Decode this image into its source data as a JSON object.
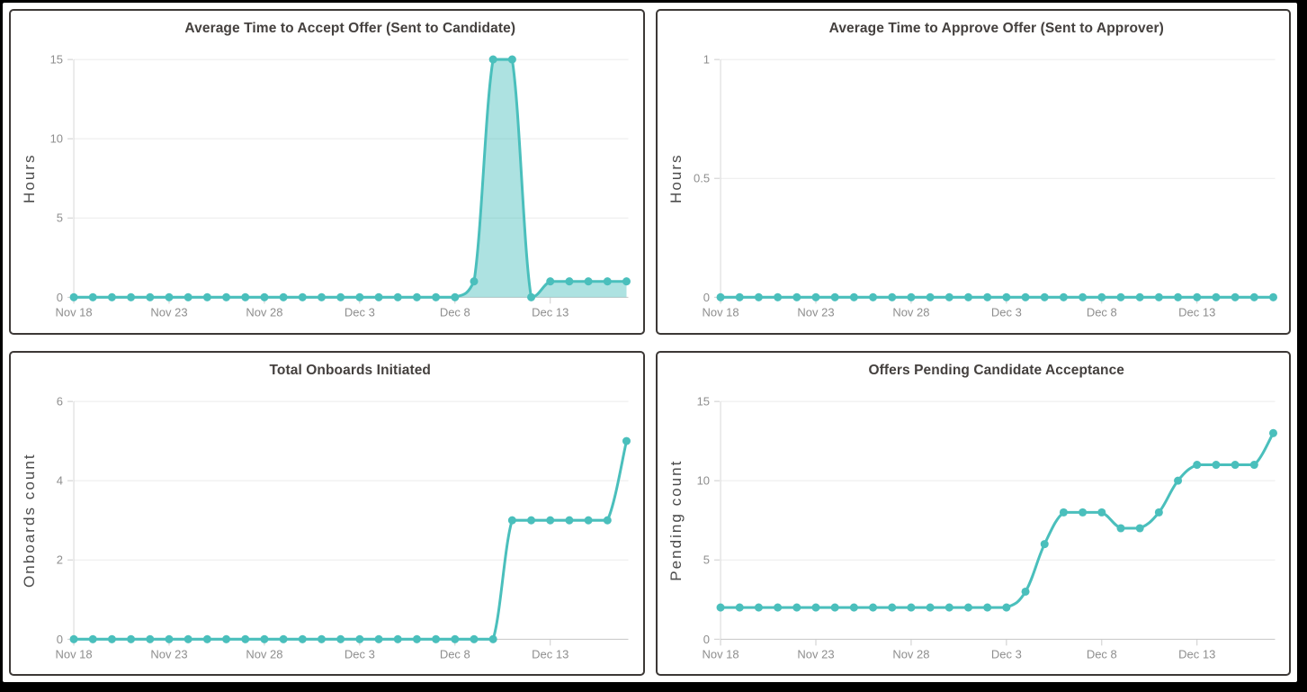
{
  "palette": {
    "line": "#4abfbc",
    "marker": "#4abfbc",
    "area_fill": "rgba(74,191,188,0.45)",
    "title_text": "#44403e",
    "axis_label_text": "#4b4b4b",
    "tick_label_text": "#8e8e8e",
    "gridline": "#ebebeb",
    "y_axis_line": "#d8d8d8",
    "x_axis_line": "#c6c6c6",
    "tick_mark": "#cccccc",
    "panel_border": "#3c3836",
    "frame": "#000000",
    "surface": "#ffffff"
  },
  "x_axis": {
    "categories": [
      "Nov 18",
      "Nov 19",
      "Nov 20",
      "Nov 21",
      "Nov 22",
      "Nov 23",
      "Nov 24",
      "Nov 25",
      "Nov 26",
      "Nov 27",
      "Nov 28",
      "Nov 29",
      "Nov 30",
      "Dec 1",
      "Dec 2",
      "Dec 3",
      "Dec 4",
      "Dec 5",
      "Dec 6",
      "Dec 7",
      "Dec 8",
      "Dec 9",
      "Dec 10",
      "Dec 11",
      "Dec 12",
      "Dec 13",
      "Dec 14",
      "Dec 15",
      "Dec 16",
      "Dec 17"
    ],
    "tick_indices": [
      0,
      5,
      10,
      15,
      20,
      25
    ],
    "tick_labels": [
      "Nov 18",
      "Nov 23",
      "Nov 28",
      "Dec 3",
      "Dec 8",
      "Dec 13"
    ]
  },
  "chart_data": [
    {
      "type": "area",
      "title": "Average Time to Accept Offer (Sent to Candidate)",
      "ylabel": "Hours",
      "xlabel": "",
      "ylim": [
        0,
        15
      ],
      "yticks": [
        0,
        5,
        10,
        15
      ],
      "grid": true,
      "legend": false,
      "fill": true,
      "values": [
        0,
        0,
        0,
        0,
        0,
        0,
        0,
        0,
        0,
        0,
        0,
        0,
        0,
        0,
        0,
        0,
        0,
        0,
        0,
        0,
        0,
        1,
        15,
        15,
        0,
        1,
        1,
        1,
        1,
        1
      ]
    },
    {
      "type": "line",
      "title": "Average Time to Approve Offer (Sent to Approver)",
      "ylabel": "Hours",
      "xlabel": "",
      "ylim": [
        0,
        1
      ],
      "yticks": [
        0,
        0.5,
        1
      ],
      "grid": true,
      "legend": false,
      "fill": false,
      "values": [
        0,
        0,
        0,
        0,
        0,
        0,
        0,
        0,
        0,
        0,
        0,
        0,
        0,
        0,
        0,
        0,
        0,
        0,
        0,
        0,
        0,
        0,
        0,
        0,
        0,
        0,
        0,
        0,
        0,
        0
      ]
    },
    {
      "type": "line",
      "title": "Total Onboards Initiated",
      "ylabel": "Onboards count",
      "xlabel": "",
      "ylim": [
        0,
        6
      ],
      "yticks": [
        0,
        2,
        4,
        6
      ],
      "grid": true,
      "legend": false,
      "fill": false,
      "values": [
        0,
        0,
        0,
        0,
        0,
        0,
        0,
        0,
        0,
        0,
        0,
        0,
        0,
        0,
        0,
        0,
        0,
        0,
        0,
        0,
        0,
        0,
        0,
        3,
        3,
        3,
        3,
        3,
        3,
        5
      ]
    },
    {
      "type": "line",
      "title": "Offers Pending Candidate Acceptance",
      "ylabel": "Pending count",
      "xlabel": "",
      "ylim": [
        0,
        15
      ],
      "yticks": [
        0,
        5,
        10,
        15
      ],
      "grid": true,
      "legend": false,
      "fill": false,
      "values": [
        2,
        2,
        2,
        2,
        2,
        2,
        2,
        2,
        2,
        2,
        2,
        2,
        2,
        2,
        2,
        2,
        3,
        6,
        8,
        8,
        8,
        7,
        7,
        8,
        10,
        11,
        11,
        11,
        11,
        13
      ]
    }
  ]
}
